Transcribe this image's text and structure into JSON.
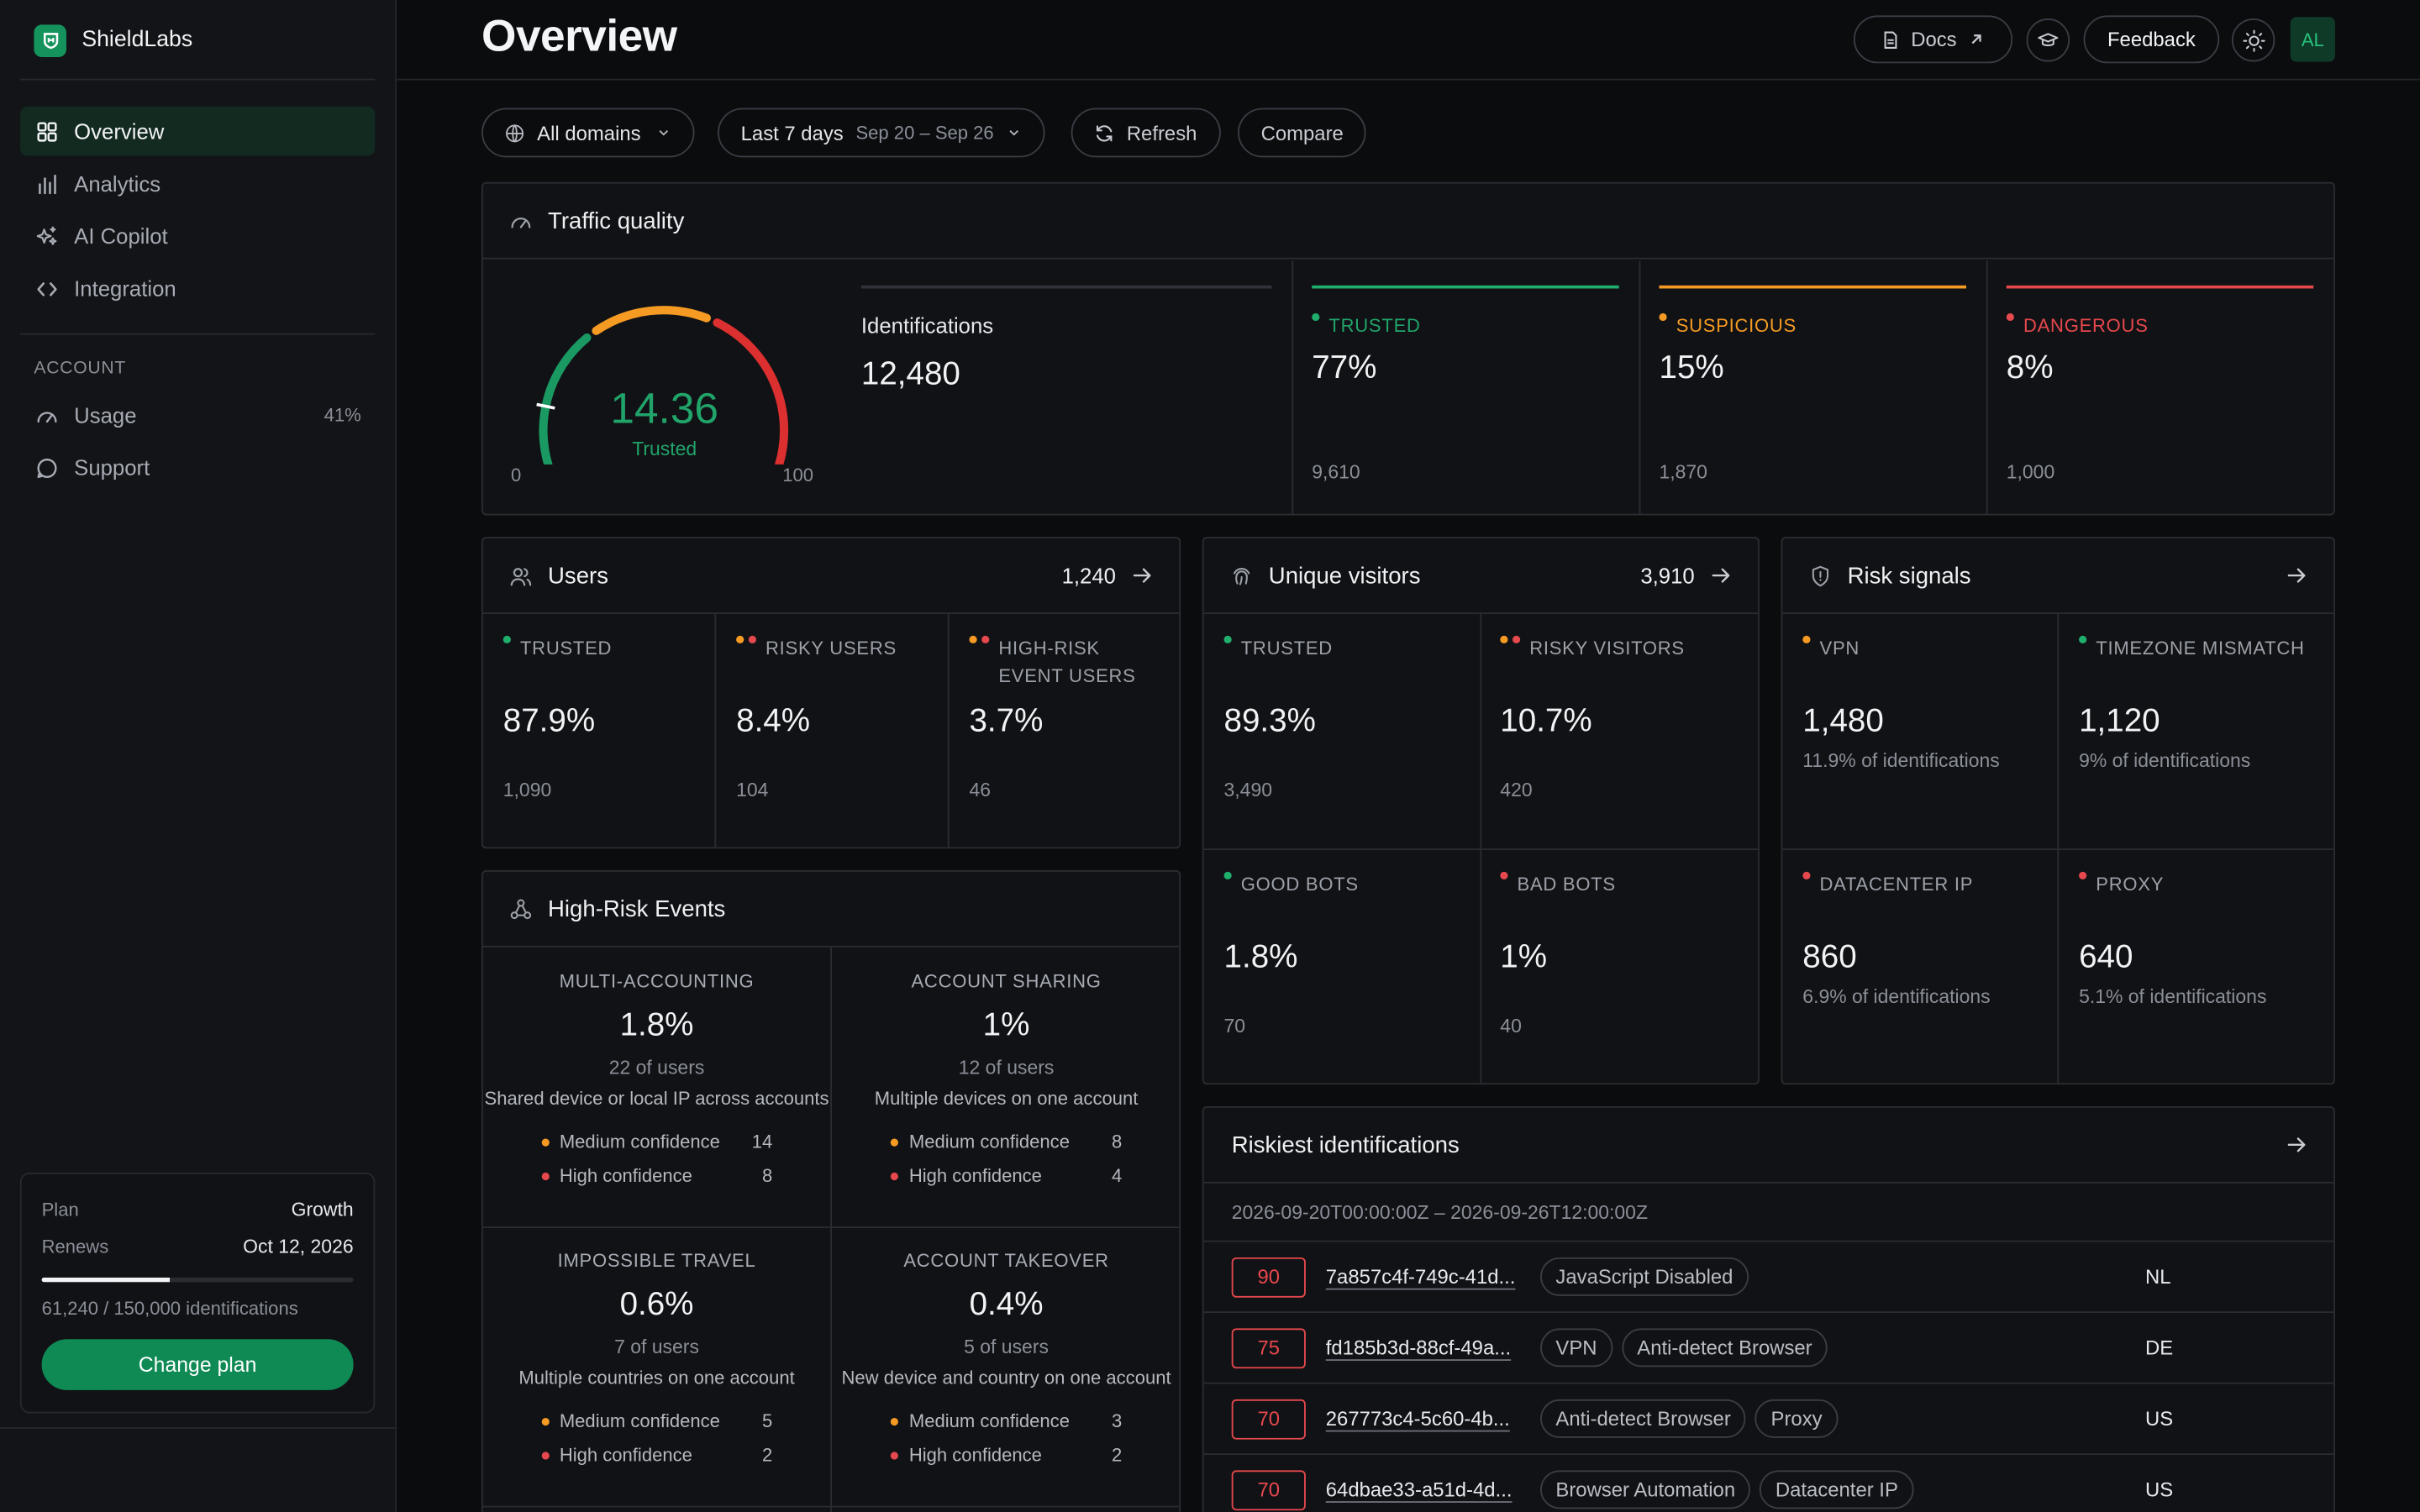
{
  "brand": {
    "name": "ShieldLabs"
  },
  "nav": {
    "items": [
      {
        "label": "Overview",
        "icon": "grid-icon",
        "active": true
      },
      {
        "label": "Analytics",
        "icon": "bar-chart-icon"
      },
      {
        "label": "AI Copilot",
        "icon": "sparkle-icon"
      },
      {
        "label": "Integration",
        "icon": "code-icon"
      }
    ],
    "account_label": "ACCOUNT",
    "account_items": [
      {
        "label": "Usage",
        "icon": "gauge-icon",
        "value": "41%"
      },
      {
        "label": "Support",
        "icon": "chat-icon"
      }
    ]
  },
  "plan": {
    "plan_label": "Plan",
    "plan_value": "Growth",
    "renews_label": "Renews",
    "renews_value": "Oct 12, 2026",
    "usage_fraction": 0.41,
    "usage_text": "61,240 / 150,000 identifications",
    "button": "Change plan"
  },
  "header": {
    "title": "Overview",
    "docs": "Docs",
    "feedback": "Feedback",
    "avatar": "AL"
  },
  "filters": {
    "domains": "All domains",
    "range": "Last 7 days",
    "range_sub": "Sep 20 – Sep 26",
    "refresh": "Refresh",
    "compare": "Compare"
  },
  "traffic": {
    "title": "Traffic quality",
    "gauge": {
      "score": "14.36",
      "score_value": 14.36,
      "label": "Trusted",
      "min": "0",
      "max": "100"
    },
    "identifications_label": "Identifications",
    "identifications_value": "12,480",
    "cols": [
      {
        "label": "TRUSTED",
        "pct": "77%",
        "count": "9,610",
        "color": "#1fae6c"
      },
      {
        "label": "SUSPICIOUS",
        "pct": "15%",
        "count": "1,870",
        "color": "#f59a23"
      },
      {
        "label": "DANGEROUS",
        "pct": "8%",
        "count": "1,000",
        "color": "#e5484d"
      }
    ]
  },
  "users": {
    "title": "Users",
    "total": "1,240",
    "cells": [
      {
        "label": "TRUSTED",
        "pct": "87.9%",
        "count": "1,090"
      },
      {
        "label": "RISKY USERS",
        "pct": "8.4%",
        "count": "104"
      },
      {
        "label": "HIGH-RISK EVENT USERS",
        "pct": "3.7%",
        "count": "46"
      }
    ]
  },
  "visitors": {
    "title": "Unique visitors",
    "total": "3,910",
    "cells": [
      {
        "label": "TRUSTED",
        "pct": "89.3%",
        "count": "3,490"
      },
      {
        "label": "RISKY VISITORS",
        "pct": "10.7%",
        "count": "420"
      },
      {
        "label": "GOOD BOTS",
        "pct": "1.8%",
        "count": "70"
      },
      {
        "label": "BAD BOTS",
        "pct": "1%",
        "count": "40"
      }
    ]
  },
  "risk": {
    "title": "Risk signals",
    "cells": [
      {
        "label": "VPN",
        "value": "1,480",
        "sub": "11.9% of identifications"
      },
      {
        "label": "TIMEZONE MISMATCH",
        "value": "1,120",
        "sub": "9% of identifications"
      },
      {
        "label": "DATACENTER IP",
        "value": "860",
        "sub": "6.9% of identifications"
      },
      {
        "label": "PROXY",
        "value": "640",
        "sub": "5.1% of identifications"
      }
    ]
  },
  "events": {
    "title": "High-Risk Events",
    "medium_label": "Medium confidence",
    "high_label": "High confidence",
    "cells": [
      {
        "title": "MULTI-ACCOUNTING",
        "pct": "1.8%",
        "users": "22 of users",
        "desc": "Shared device or local IP across accounts",
        "medium": "14",
        "high": "8"
      },
      {
        "title": "ACCOUNT SHARING",
        "pct": "1%",
        "users": "12 of users",
        "desc": "Multiple devices on one account",
        "medium": "8",
        "high": "4"
      },
      {
        "title": "IMPOSSIBLE TRAVEL",
        "pct": "0.6%",
        "users": "7 of users",
        "desc": "Multiple countries on one account",
        "medium": "5",
        "high": "2"
      },
      {
        "title": "ACCOUNT TAKEOVER",
        "pct": "0.4%",
        "users": "5 of users",
        "desc": "New device and country on one account",
        "medium": "3",
        "high": "2"
      }
    ]
  },
  "riskiest": {
    "title": "Riskiest identifications",
    "range": "2026-09-20T00:00:00Z – 2026-09-26T12:00:00Z",
    "rows": [
      {
        "score": "90",
        "id": "7a857c4f-749c-41d...",
        "tags": [
          "JavaScript Disabled"
        ],
        "country": "NL"
      },
      {
        "score": "75",
        "id": "fd185b3d-88cf-49a...",
        "tags": [
          "VPN",
          "Anti-detect Browser"
        ],
        "country": "DE"
      },
      {
        "score": "70",
        "id": "267773c4-5c60-4b...",
        "tags": [
          "Anti-detect Browser",
          "Proxy"
        ],
        "country": "US"
      },
      {
        "score": "70",
        "id": "64dbae33-a51d-4d...",
        "tags": [
          "Browser Automation",
          "Datacenter IP"
        ],
        "country": "US"
      }
    ]
  }
}
